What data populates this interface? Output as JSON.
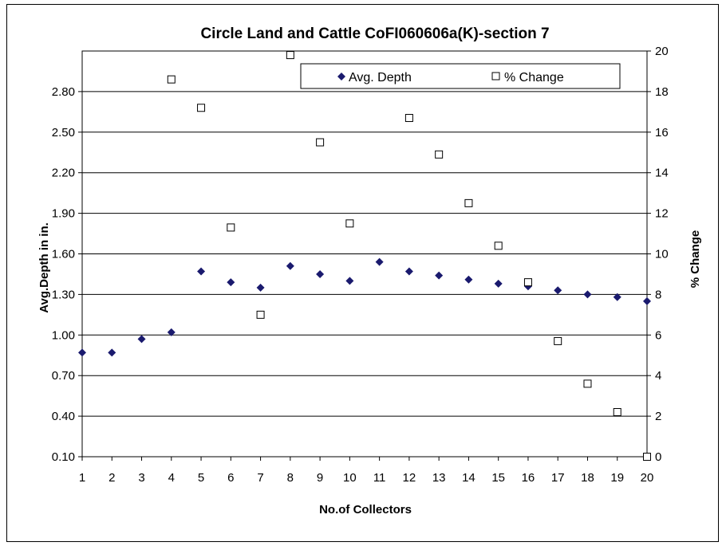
{
  "chart_data": {
    "type": "scatter",
    "title": "Circle Land and Cattle CoFI060606a(K)-section 7",
    "xlabel": "No.of Collectors",
    "ylabel": "Avg.Depth in in.",
    "y2label": "% Change",
    "x": [
      1,
      2,
      3,
      4,
      5,
      6,
      7,
      8,
      9,
      10,
      11,
      12,
      13,
      14,
      15,
      16,
      17,
      18,
      19,
      20
    ],
    "x_ticks": [
      "1",
      "2",
      "3",
      "4",
      "5",
      "6",
      "7",
      "8",
      "9",
      "10",
      "11",
      "12",
      "13",
      "14",
      "15",
      "16",
      "17",
      "18",
      "19",
      "20"
    ],
    "ylim": [
      0.1,
      3.1
    ],
    "y_ticks": [
      "0.10",
      "0.40",
      "0.70",
      "1.00",
      "1.30",
      "1.60",
      "1.90",
      "2.20",
      "2.50",
      "2.80"
    ],
    "y2lim": [
      0,
      20
    ],
    "y2_ticks": [
      "0",
      "2",
      "4",
      "6",
      "8",
      "10",
      "12",
      "14",
      "16",
      "18",
      "20"
    ],
    "grid": true,
    "legend_position": "top-right",
    "series": [
      {
        "name": "Avg. Depth",
        "axis": "left",
        "marker": "filled-diamond",
        "color": "#1a1a6e",
        "values": [
          0.87,
          0.87,
          0.97,
          1.02,
          1.47,
          1.39,
          1.35,
          1.51,
          1.45,
          1.4,
          1.54,
          1.47,
          1.44,
          1.41,
          1.38,
          1.36,
          1.33,
          1.3,
          1.28,
          1.25
        ]
      },
      {
        "name": "% Change",
        "axis": "right",
        "marker": "open-square",
        "color": "#000000",
        "values": [
          null,
          null,
          null,
          18.6,
          17.2,
          11.3,
          7.0,
          19.8,
          15.5,
          11.5,
          null,
          16.7,
          14.9,
          12.5,
          10.4,
          8.6,
          5.7,
          3.6,
          2.2,
          0.0
        ]
      }
    ]
  }
}
